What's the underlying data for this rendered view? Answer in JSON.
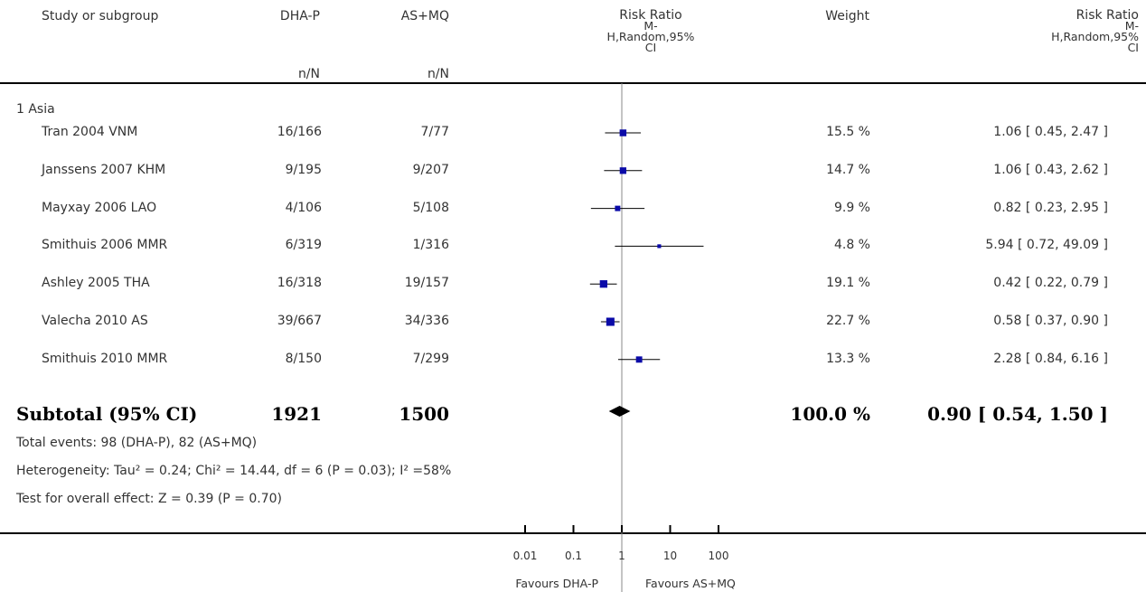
{
  "header": {
    "study_col": "Study or subgroup",
    "group1": "DHA-P",
    "group2": "AS+MQ",
    "n_label1": "n/N",
    "n_label2": "n/N",
    "rr_plot_title_l1": "Risk Ratio",
    "rr_plot_title_l2": "M-",
    "rr_plot_title_l3": "H,Random,95%",
    "rr_plot_title_l4": "CI",
    "weight_col": "Weight",
    "rr_col_title_l1": "Risk Ratio",
    "rr_col_title_l2": "M-",
    "rr_col_title_l3": "H,Random,95%",
    "rr_col_title_l4": "CI"
  },
  "subgroup_label": "1 Asia",
  "colors": {
    "square": "#0a0aa8",
    "line": "#000000",
    "axis": "#000000"
  },
  "subtotal": {
    "label": "Subtotal (95% CI)",
    "n1": "1921",
    "n2": "1500",
    "weight": "100.0 %",
    "rr_text": "0.90 [ 0.54, 1.50 ]"
  },
  "footnotes": {
    "total_events": "Total events: 98 (DHA-P), 82 (AS+MQ)",
    "heterogeneity": "Heterogeneity: Tau² = 0.24; Chi² = 14.44, df = 6 (P = 0.03); I² =58%",
    "overall_effect": "Test for overall effect: Z = 0.39 (P = 0.70)"
  },
  "axis": {
    "favours_left": "Favours DHA-P",
    "favours_right": "Favours AS+MQ"
  },
  "chart_data": {
    "type": "forest",
    "scale": "log",
    "xlim": [
      0.01,
      100
    ],
    "ticks": [
      {
        "value": 0.01,
        "label": "0.01"
      },
      {
        "value": 0.1,
        "label": "0.1"
      },
      {
        "value": 1,
        "label": "1"
      },
      {
        "value": 10,
        "label": "10"
      },
      {
        "value": 100,
        "label": "100"
      }
    ],
    "studies": [
      {
        "name": "Tran 2004 VNM",
        "n1": "16/166",
        "n2": "7/77",
        "weight": 15.5,
        "weight_text": "15.5 %",
        "rr": 1.06,
        "lo": 0.45,
        "hi": 2.47,
        "rr_text": "1.06 [ 0.45, 2.47 ]"
      },
      {
        "name": "Janssens 2007 KHM",
        "n1": "9/195",
        "n2": "9/207",
        "weight": 14.7,
        "weight_text": "14.7 %",
        "rr": 1.06,
        "lo": 0.43,
        "hi": 2.62,
        "rr_text": "1.06 [ 0.43, 2.62 ]"
      },
      {
        "name": "Mayxay 2006 LAO",
        "n1": "4/106",
        "n2": "5/108",
        "weight": 9.9,
        "weight_text": "9.9 %",
        "rr": 0.82,
        "lo": 0.23,
        "hi": 2.95,
        "rr_text": "0.82 [ 0.23, 2.95 ]"
      },
      {
        "name": "Smithuis 2006 MMR",
        "n1": "6/319",
        "n2": "1/316",
        "weight": 4.8,
        "weight_text": "4.8 %",
        "rr": 5.94,
        "lo": 0.72,
        "hi": 49.09,
        "rr_text": "5.94 [ 0.72, 49.09 ]"
      },
      {
        "name": "Ashley 2005 THA",
        "n1": "16/318",
        "n2": "19/157",
        "weight": 19.1,
        "weight_text": "19.1 %",
        "rr": 0.42,
        "lo": 0.22,
        "hi": 0.79,
        "rr_text": "0.42 [ 0.22, 0.79 ]"
      },
      {
        "name": "Valecha 2010 AS",
        "n1": "39/667",
        "n2": "34/336",
        "weight": 22.7,
        "weight_text": "22.7 %",
        "rr": 0.58,
        "lo": 0.37,
        "hi": 0.9,
        "rr_text": "0.58 [ 0.37, 0.90 ]"
      },
      {
        "name": "Smithuis 2010 MMR",
        "n1": "8/150",
        "n2": "7/299",
        "weight": 13.3,
        "weight_text": "13.3 %",
        "rr": 2.28,
        "lo": 0.84,
        "hi": 6.16,
        "rr_text": "2.28 [ 0.84, 6.16 ]"
      }
    ],
    "pooled": {
      "rr": 0.9,
      "lo": 0.54,
      "hi": 1.5
    }
  }
}
